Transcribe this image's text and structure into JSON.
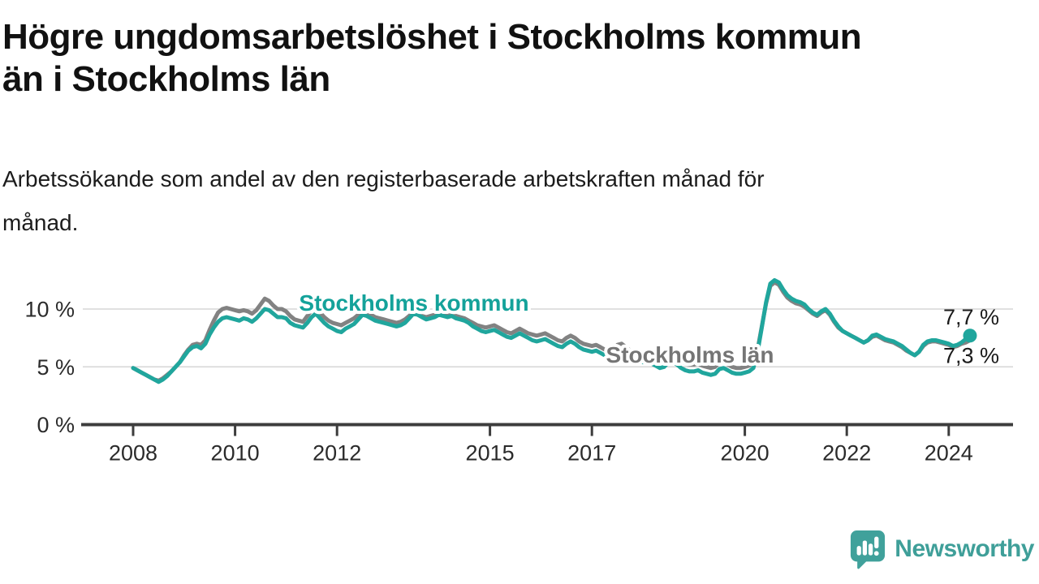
{
  "header": {
    "title": "Högre ungdomsarbetslöshet i Stockholms kommun\nän i Stockholms län",
    "subtitle": "Arbetssökande som andel av den registerbaserade arbetskraften månad för\nmånad."
  },
  "footer": {
    "brand": "Newsworthy",
    "brand_color": "#3f9f99"
  },
  "chart_data": {
    "type": "line",
    "unit": "%",
    "title": "",
    "xlabel": "",
    "ylabel": "",
    "grid": "horizontal",
    "start_year": 2008,
    "points_per_year": 12,
    "x_tick_years": [
      2008,
      2010,
      2012,
      2015,
      2017,
      2020,
      2022,
      2024
    ],
    "y_ticks": [
      {
        "value": 0,
        "label": "0 %"
      },
      {
        "value": 5,
        "label": "5 %"
      },
      {
        "value": 10,
        "label": "10 %"
      }
    ],
    "ylim": [
      0,
      13.5
    ],
    "series": [
      {
        "name": "Stockholms län",
        "color": "#828282",
        "label_color": "#757575",
        "end_label": "7,3 %",
        "end_dot": false,
        "values": [
          4.9,
          4.7,
          4.5,
          4.3,
          4.1,
          3.9,
          3.8,
          4.0,
          4.3,
          4.6,
          5.0,
          5.4,
          6.0,
          6.5,
          6.9,
          7.0,
          6.9,
          7.3,
          8.2,
          9.0,
          9.7,
          10.0,
          10.1,
          10.0,
          9.9,
          9.8,
          9.9,
          9.8,
          9.6,
          9.9,
          10.4,
          10.9,
          10.7,
          10.3,
          10.0,
          10.0,
          9.8,
          9.4,
          9.1,
          9.0,
          8.9,
          9.4,
          9.9,
          10.1,
          9.7,
          9.3,
          9.0,
          8.8,
          8.7,
          8.6,
          8.8,
          9.0,
          9.2,
          9.5,
          9.8,
          9.7,
          9.5,
          9.3,
          9.2,
          9.1,
          9.0,
          8.9,
          8.8,
          8.9,
          9.1,
          9.4,
          9.7,
          9.6,
          9.4,
          9.3,
          9.4,
          9.5,
          9.6,
          9.5,
          9.4,
          9.5,
          9.4,
          9.3,
          9.2,
          9.0,
          8.8,
          8.6,
          8.5,
          8.4,
          8.5,
          8.6,
          8.4,
          8.2,
          8.0,
          7.9,
          8.1,
          8.3,
          8.1,
          7.9,
          7.8,
          7.7,
          7.8,
          7.9,
          7.7,
          7.5,
          7.3,
          7.2,
          7.5,
          7.7,
          7.5,
          7.2,
          7.0,
          6.9,
          6.8,
          6.9,
          6.7,
          6.5,
          6.3,
          6.4,
          6.9,
          7.0,
          6.7,
          6.4,
          6.2,
          6.1,
          6.0,
          6.1,
          5.9,
          5.7,
          5.5,
          5.6,
          6.0,
          6.1,
          5.8,
          5.5,
          5.3,
          5.2,
          5.2,
          5.3,
          5.1,
          5.0,
          4.9,
          5.0,
          5.4,
          5.5,
          5.2,
          5.0,
          4.9,
          4.9,
          5.0,
          5.1,
          5.3,
          6.5,
          8.5,
          10.5,
          12.0,
          12.3,
          12.1,
          11.5,
          11.0,
          10.7,
          10.5,
          10.4,
          10.2,
          9.9,
          9.6,
          9.4,
          9.7,
          9.9,
          9.5,
          8.9,
          8.4,
          8.1,
          7.9,
          7.7,
          7.5,
          7.3,
          7.1,
          7.3,
          7.6,
          7.7,
          7.5,
          7.3,
          7.2,
          7.1,
          6.9,
          6.7,
          6.4,
          6.2,
          6.0,
          6.3,
          6.8,
          7.1,
          7.2,
          7.2,
          7.1,
          7.0,
          6.9,
          6.7,
          6.8,
          7.0,
          7.1,
          7.3
        ]
      },
      {
        "name": "Stockholms kommun",
        "color": "#20a69d",
        "label_color": "#14a29a",
        "end_label": "7,7 %",
        "end_dot": true,
        "values": [
          4.9,
          4.7,
          4.5,
          4.3,
          4.1,
          3.9,
          3.7,
          3.9,
          4.2,
          4.6,
          5.0,
          5.4,
          5.9,
          6.4,
          6.7,
          6.8,
          6.6,
          7.0,
          7.8,
          8.4,
          8.9,
          9.2,
          9.3,
          9.2,
          9.1,
          9.0,
          9.2,
          9.1,
          8.9,
          9.2,
          9.6,
          10.0,
          9.9,
          9.6,
          9.3,
          9.3,
          9.2,
          8.8,
          8.6,
          8.5,
          8.4,
          8.8,
          9.3,
          9.6,
          9.2,
          8.8,
          8.5,
          8.3,
          8.1,
          8.0,
          8.3,
          8.5,
          8.7,
          9.1,
          9.5,
          9.4,
          9.2,
          9.0,
          8.9,
          8.8,
          8.7,
          8.6,
          8.5,
          8.6,
          8.8,
          9.2,
          9.6,
          9.5,
          9.3,
          9.1,
          9.2,
          9.3,
          9.5,
          9.4,
          9.3,
          9.4,
          9.2,
          9.1,
          9.0,
          8.8,
          8.5,
          8.3,
          8.1,
          8.0,
          8.1,
          8.2,
          8.0,
          7.8,
          7.6,
          7.5,
          7.7,
          7.9,
          7.7,
          7.5,
          7.3,
          7.2,
          7.3,
          7.4,
          7.2,
          7.0,
          6.8,
          6.7,
          7.0,
          7.2,
          7.0,
          6.7,
          6.5,
          6.4,
          6.3,
          6.4,
          6.2,
          6.0,
          5.8,
          5.9,
          6.3,
          6.4,
          6.1,
          5.8,
          5.6,
          5.5,
          5.4,
          5.5,
          5.3,
          5.1,
          4.9,
          5.0,
          5.4,
          5.5,
          5.2,
          4.9,
          4.7,
          4.6,
          4.6,
          4.7,
          4.5,
          4.4,
          4.3,
          4.4,
          4.8,
          4.9,
          4.7,
          4.5,
          4.4,
          4.4,
          4.5,
          4.6,
          4.9,
          6.3,
          8.4,
          10.6,
          12.2,
          12.5,
          12.3,
          11.7,
          11.2,
          10.9,
          10.7,
          10.6,
          10.4,
          10.0,
          9.7,
          9.5,
          9.8,
          10.0,
          9.6,
          9.0,
          8.5,
          8.1,
          7.9,
          7.7,
          7.5,
          7.3,
          7.1,
          7.3,
          7.7,
          7.8,
          7.6,
          7.4,
          7.3,
          7.2,
          7.0,
          6.8,
          6.5,
          6.2,
          6.0,
          6.3,
          6.9,
          7.2,
          7.3,
          7.3,
          7.2,
          7.1,
          7.0,
          6.8,
          6.9,
          7.1,
          7.4,
          7.7
        ]
      }
    ]
  }
}
